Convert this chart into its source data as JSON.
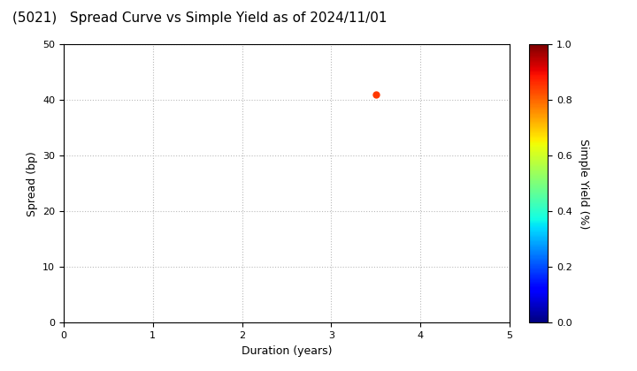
{
  "title": "(5021)   Spread Curve vs Simple Yield as of 2024/11/01",
  "xlabel": "Duration (years)",
  "ylabel": "Spread (bp)",
  "colorbar_label": "Simple Yield (%)",
  "xlim": [
    0,
    5
  ],
  "ylim": [
    0,
    50
  ],
  "xticks": [
    0,
    1,
    2,
    3,
    4,
    5
  ],
  "yticks": [
    0,
    10,
    20,
    30,
    40,
    50
  ],
  "colorbar_ticks": [
    0.0,
    0.2,
    0.4,
    0.6,
    0.8,
    1.0
  ],
  "point_x": 3.5,
  "point_y": 41,
  "point_color_value": 0.85,
  "background_color": "#ffffff",
  "grid_color": "#bbbbbb",
  "title_fontsize": 11,
  "label_fontsize": 9,
  "tick_fontsize": 8,
  "colorbar_tick_fontsize": 8,
  "colorbar_label_fontsize": 9
}
